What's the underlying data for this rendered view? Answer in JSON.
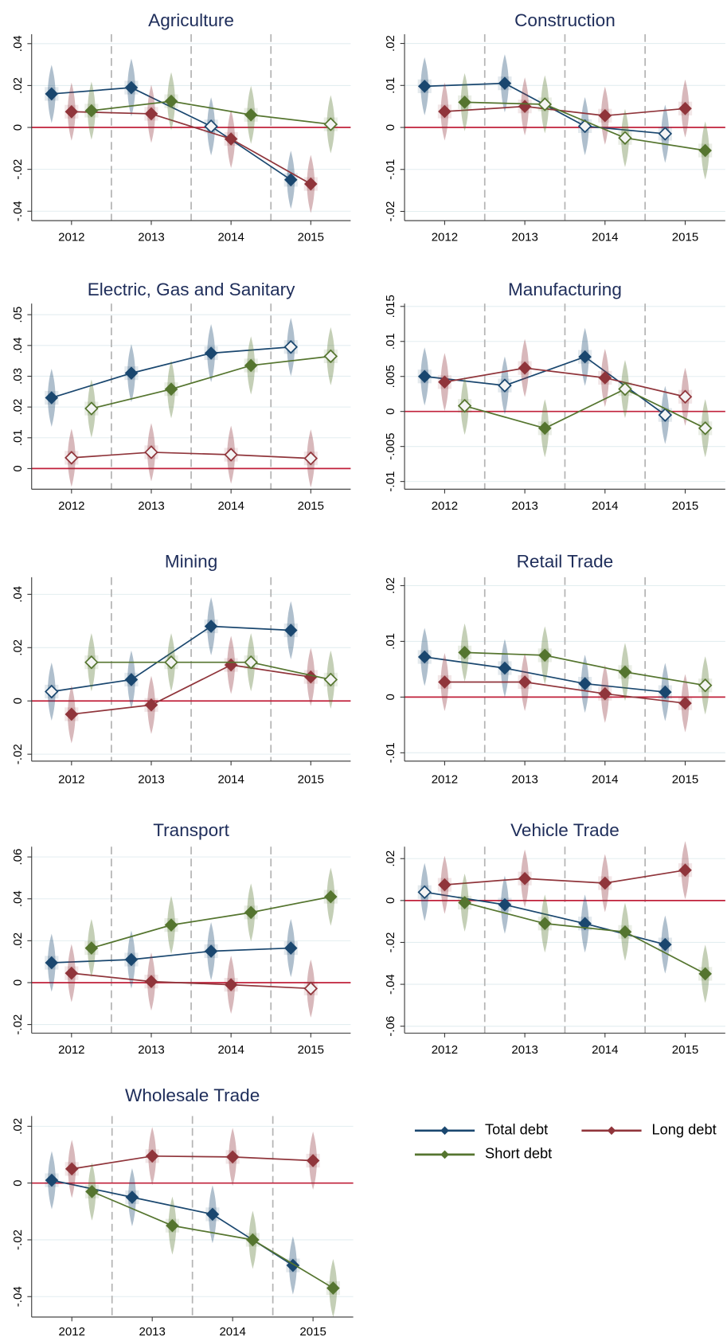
{
  "chart_data": [
    {
      "type": "line",
      "title": "Agriculture",
      "categories": [
        "2012",
        "2013",
        "2014",
        "2015"
      ],
      "ylim": [
        -0.0445,
        0.0445
      ],
      "yticks": [
        {
          "value": -0.04,
          "label": "-.04"
        },
        {
          "value": -0.02,
          "label": "-.02"
        },
        0,
        {
          "value": 0.02,
          "label": ".02"
        },
        {
          "value": 0.04,
          "label": ".04"
        }
      ],
      "grid": true,
      "hline": 0,
      "hline_color": "#c0203a",
      "series": [
        {
          "name": "Total debt",
          "color": "#1a476f",
          "values": [
            0.016,
            0.019,
            0.0005,
            -0.025
          ],
          "open": [
            false,
            false,
            true,
            false
          ]
        },
        {
          "name": "Long debt",
          "color": "#90353b",
          "values": [
            0.0075,
            0.0065,
            -0.0055,
            -0.027
          ],
          "open": [
            false,
            false,
            false,
            false
          ]
        },
        {
          "name": "Short debt",
          "color": "#55752f",
          "values": [
            0.008,
            0.0125,
            0.006,
            0.0015
          ],
          "open": [
            false,
            false,
            false,
            true
          ]
        }
      ]
    },
    {
      "type": "line",
      "title": "Construction",
      "categories": [
        "2012",
        "2013",
        "2014",
        "2015"
      ],
      "ylim": [
        -0.0222,
        0.0222
      ],
      "yticks": [
        {
          "value": -0.02,
          "label": "-.02"
        },
        {
          "value": -0.01,
          "label": "-.01"
        },
        0,
        {
          "value": 0.01,
          "label": ".01"
        },
        {
          "value": 0.02,
          "label": ".02"
        }
      ],
      "grid": true,
      "hline": 0,
      "hline_color": "#c0203a",
      "series": [
        {
          "name": "Total debt",
          "color": "#1a476f",
          "values": [
            0.0098,
            0.0105,
            0.0003,
            -0.0015
          ],
          "open": [
            false,
            false,
            true,
            true
          ]
        },
        {
          "name": "Long debt",
          "color": "#90353b",
          "values": [
            0.0038,
            0.005,
            0.0028,
            0.0045
          ],
          "open": [
            false,
            false,
            false,
            false
          ]
        },
        {
          "name": "Short debt",
          "color": "#55752f",
          "values": [
            0.006,
            0.0055,
            -0.0025,
            -0.0055
          ],
          "open": [
            false,
            true,
            true,
            false
          ]
        }
      ]
    },
    {
      "type": "line",
      "title": "Electric, Gas and Sanitary",
      "categories": [
        "2012",
        "2013",
        "2014",
        "2015"
      ],
      "ylim": [
        -0.0067,
        0.0536
      ],
      "yticks": [
        0,
        {
          "value": 0.01,
          "label": ".01"
        },
        {
          "value": 0.02,
          "label": ".02"
        },
        {
          "value": 0.03,
          "label": ".03"
        },
        {
          "value": 0.04,
          "label": ".04"
        },
        {
          "value": 0.05,
          "label": ".05"
        }
      ],
      "grid": true,
      "hline": 0,
      "hline_color": "#c0203a",
      "series": [
        {
          "name": "Total debt",
          "color": "#1a476f",
          "values": [
            0.023,
            0.031,
            0.0375,
            0.0395
          ],
          "open": [
            false,
            false,
            false,
            true
          ]
        },
        {
          "name": "Long debt",
          "color": "#90353b",
          "values": [
            0.0035,
            0.0053,
            0.0045,
            0.0033
          ],
          "open": [
            true,
            true,
            true,
            true
          ]
        },
        {
          "name": "Short debt",
          "color": "#55752f",
          "values": [
            0.0195,
            0.0258,
            0.0335,
            0.0365
          ],
          "open": [
            true,
            false,
            false,
            true
          ]
        }
      ]
    },
    {
      "type": "line",
      "title": "Manufacturing",
      "categories": [
        "2012",
        "2013",
        "2014",
        "2015"
      ],
      "ylim": [
        -0.0111,
        0.0154
      ],
      "yticks": [
        {
          "value": -0.01,
          "label": "-.01"
        },
        {
          "value": -0.005,
          "label": "-.005"
        },
        0,
        {
          "value": 0.005,
          "label": ".005"
        },
        {
          "value": 0.01,
          "label": ".01"
        },
        {
          "value": 0.015,
          "label": ".015"
        }
      ],
      "grid": true,
      "hline": 0,
      "hline_color": "#c0203a",
      "series": [
        {
          "name": "Total debt",
          "color": "#1a476f",
          "values": [
            0.005,
            0.0037,
            0.0078,
            -0.0005
          ],
          "open": [
            false,
            true,
            false,
            true
          ]
        },
        {
          "name": "Long debt",
          "color": "#90353b",
          "values": [
            0.0042,
            0.0062,
            0.0048,
            0.0021
          ],
          "open": [
            false,
            false,
            false,
            true
          ]
        },
        {
          "name": "Short debt",
          "color": "#55752f",
          "values": [
            0.0008,
            -0.0024,
            0.0032,
            -0.0024
          ],
          "open": [
            true,
            false,
            true,
            true
          ]
        }
      ]
    },
    {
      "type": "line",
      "title": "Mining",
      "categories": [
        "2012",
        "2013",
        "2014",
        "2015"
      ],
      "ylim": [
        -0.0226,
        0.0464
      ],
      "yticks": [
        {
          "value": -0.02,
          "label": "-.02"
        },
        0,
        {
          "value": 0.02,
          "label": ".02"
        },
        {
          "value": 0.04,
          "label": ".04"
        }
      ],
      "grid": true,
      "hline": 0,
      "hline_color": "#c0203a",
      "series": [
        {
          "name": "Total debt",
          "color": "#1a476f",
          "values": [
            0.0035,
            0.008,
            0.028,
            0.0265
          ],
          "open": [
            true,
            false,
            false,
            false
          ]
        },
        {
          "name": "Long debt",
          "color": "#90353b",
          "values": [
            -0.005,
            -0.0015,
            0.0135,
            0.009
          ],
          "open": [
            false,
            false,
            false,
            false
          ]
        },
        {
          "name": "Short debt",
          "color": "#55752f",
          "values": [
            0.0145,
            0.0145,
            0.0145,
            0.008
          ],
          "open": [
            true,
            true,
            true,
            true
          ]
        }
      ]
    },
    {
      "type": "line",
      "title": "Retail Trade",
      "categories": [
        "2012",
        "2013",
        "2014",
        "2015"
      ],
      "ylim": [
        -0.0115,
        0.0215
      ],
      "yticks": [
        {
          "value": -0.01,
          "label": "-.01"
        },
        0,
        {
          "value": 0.01,
          "label": ".01"
        },
        {
          "value": 0.02,
          "label": ".02"
        }
      ],
      "grid": true,
      "hline": 0,
      "hline_color": "#c0203a",
      "series": [
        {
          "name": "Total debt",
          "color": "#1a476f",
          "values": [
            0.0072,
            0.0052,
            0.0024,
            0.0009
          ],
          "open": [
            false,
            false,
            false,
            false
          ]
        },
        {
          "name": "Long debt",
          "color": "#90353b",
          "values": [
            0.0027,
            0.0027,
            0.0006,
            -0.0011
          ],
          "open": [
            false,
            false,
            false,
            false
          ]
        },
        {
          "name": "Short debt",
          "color": "#55752f",
          "values": [
            0.008,
            0.0075,
            0.0045,
            0.0021
          ],
          "open": [
            false,
            false,
            false,
            true
          ]
        }
      ]
    },
    {
      "type": "line",
      "title": "Transport",
      "categories": [
        "2012",
        "2013",
        "2014",
        "2015"
      ],
      "ylim": [
        -0.0241,
        0.0649
      ],
      "yticks": [
        {
          "value": -0.02,
          "label": "-.02"
        },
        0,
        {
          "value": 0.02,
          "label": ".02"
        },
        {
          "value": 0.04,
          "label": ".04"
        },
        {
          "value": 0.06,
          "label": ".06"
        }
      ],
      "grid": true,
      "hline": 0,
      "hline_color": "#c0203a",
      "series": [
        {
          "name": "Total debt",
          "color": "#1a476f",
          "values": [
            0.0095,
            0.011,
            0.015,
            0.0165
          ],
          "open": [
            false,
            false,
            false,
            false
          ]
        },
        {
          "name": "Long debt",
          "color": "#90353b",
          "values": [
            0.0045,
            0.0005,
            -0.001,
            -0.0028
          ],
          "open": [
            false,
            false,
            false,
            true
          ]
        },
        {
          "name": "Short debt",
          "color": "#55752f",
          "values": [
            0.0165,
            0.0275,
            0.0335,
            0.041
          ],
          "open": [
            false,
            false,
            false,
            false
          ]
        }
      ]
    },
    {
      "type": "line",
      "title": "Vehicle Trade",
      "categories": [
        "2012",
        "2013",
        "2014",
        "2015"
      ],
      "ylim": [
        -0.0633,
        0.0257
      ],
      "yticks": [
        {
          "value": -0.06,
          "label": "-.06"
        },
        {
          "value": -0.04,
          "label": "-.04"
        },
        {
          "value": -0.02,
          "label": "-.02"
        },
        0,
        {
          "value": 0.02,
          "label": ".02"
        }
      ],
      "grid": true,
      "hline": 0,
      "hline_color": "#c0203a",
      "series": [
        {
          "name": "Total debt",
          "color": "#1a476f",
          "values": [
            0.004,
            -0.002,
            -0.011,
            -0.021
          ],
          "open": [
            true,
            false,
            false,
            false
          ]
        },
        {
          "name": "Long debt",
          "color": "#90353b",
          "values": [
            0.0075,
            0.0105,
            0.0083,
            0.0145
          ],
          "open": [
            false,
            false,
            false,
            false
          ]
        },
        {
          "name": "Short debt",
          "color": "#55752f",
          "values": [
            -0.001,
            -0.011,
            -0.015,
            -0.035
          ],
          "open": [
            false,
            false,
            false,
            false
          ]
        }
      ]
    },
    {
      "type": "line",
      "title": "Wholesale Trade",
      "categories": [
        "2012",
        "2013",
        "2014",
        "2015"
      ],
      "ylim": [
        -0.0472,
        0.0236
      ],
      "yticks": [
        {
          "value": -0.04,
          "label": "-.04"
        },
        {
          "value": -0.02,
          "label": "-.02"
        },
        0,
        {
          "value": 0.02,
          "label": ".02"
        }
      ],
      "grid": true,
      "hline": 0,
      "hline_color": "#c0203a",
      "series": [
        {
          "name": "Total debt",
          "color": "#1a476f",
          "values": [
            0.001,
            -0.005,
            -0.011,
            -0.029
          ],
          "open": [
            false,
            false,
            false,
            false
          ]
        },
        {
          "name": "Long debt",
          "color": "#90353b",
          "values": [
            0.005,
            0.0095,
            0.0092,
            0.0079
          ],
          "open": [
            false,
            false,
            false,
            false
          ]
        },
        {
          "name": "Short debt",
          "color": "#55752f",
          "values": [
            -0.003,
            -0.015,
            -0.02,
            -0.037
          ],
          "open": [
            false,
            false,
            false,
            false
          ]
        }
      ]
    }
  ]
}
